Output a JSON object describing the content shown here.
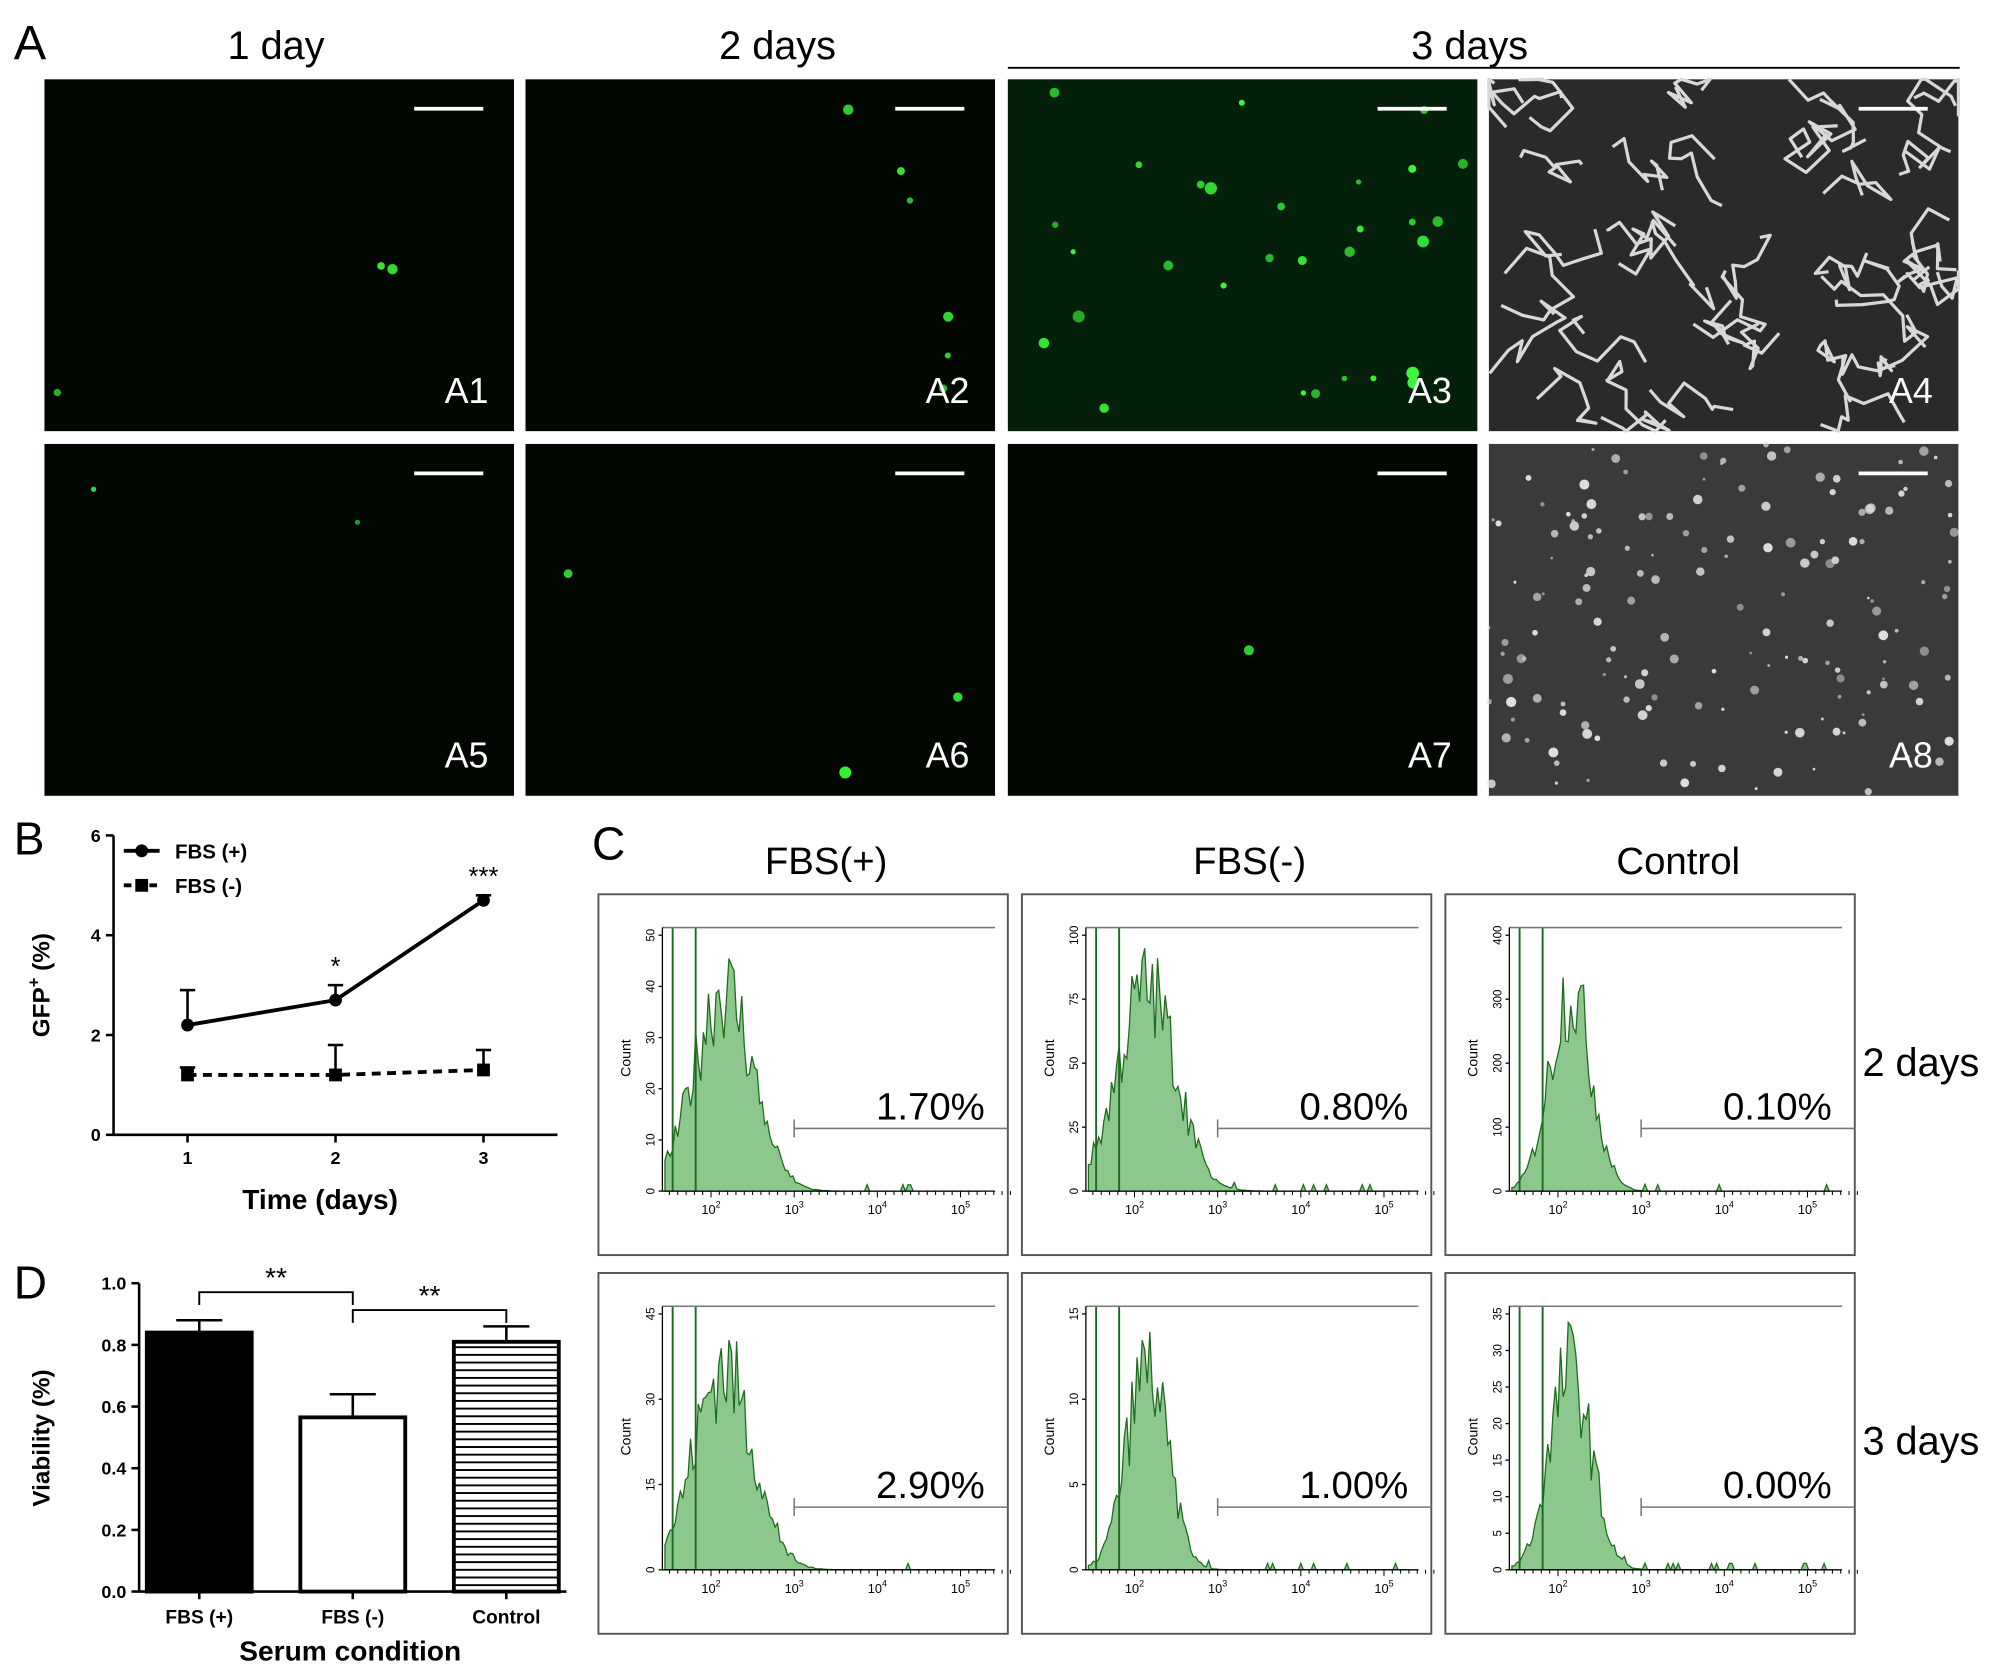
{
  "panel_labels": [
    "A",
    "B",
    "C",
    "D"
  ],
  "panel_a": {
    "columns": [
      "1 day",
      "2 days",
      "3 days"
    ],
    "images": [
      "A1",
      "A2",
      "A3",
      "A4",
      "A5",
      "A6",
      "A7",
      "A8"
    ]
  },
  "chart_data": [
    {
      "type": "line",
      "y_label": "GFP",
      "y_label_sup": "+",
      "y_label_unit": " (%)",
      "x_label": "Time (days)",
      "x": [
        1,
        2,
        3
      ],
      "xlim": [
        0.5,
        3.5
      ],
      "xticks": [
        1,
        2,
        3
      ],
      "ylim": [
        0,
        6
      ],
      "yticks": [
        0,
        2,
        4,
        6
      ],
      "series": [
        {
          "name": "FBS (+)",
          "color": "#000000",
          "marker": "circle",
          "dash": "solid",
          "values": [
            2.2,
            2.7,
            4.7
          ],
          "errors": [
            0.7,
            0.3,
            0.1
          ]
        },
        {
          "name": "FBS (-)",
          "color": "#000000",
          "marker": "square",
          "dash": "dashed",
          "values": [
            1.2,
            1.2,
            1.3
          ],
          "errors": [
            0.15,
            0.6,
            0.4
          ]
        }
      ],
      "annotations": [
        {
          "text": "*",
          "x": 2
        },
        {
          "text": "***",
          "x": 3
        }
      ],
      "legend": "top-left"
    },
    {
      "type": "bar",
      "y_label": "Viability (%)",
      "x_label": "Serum condition",
      "categories": [
        "FBS (+)",
        "FBS (-)",
        "Control"
      ],
      "values": [
        0.84,
        0.565,
        0.81
      ],
      "errors": [
        0.04,
        0.075,
        0.05
      ],
      "colors": [
        "#000000",
        "#ffffff",
        "#ffffff"
      ],
      "hatches": [
        "none",
        "none",
        "horizontal"
      ],
      "ylim": [
        0,
        1
      ],
      "yticks": [
        {
          "value": 0,
          "label": "0.0"
        },
        0.2,
        0.4,
        0.6,
        0.8,
        {
          "value": 1,
          "label": "1.0"
        }
      ],
      "comparisons": [
        {
          "text": "**",
          "from": "FBS (+)",
          "to": "FBS (-)"
        },
        {
          "text": "**",
          "from": "FBS (-)",
          "to": "Control"
        }
      ]
    }
  ],
  "panel_c": {
    "columns": [
      "FBS(+)",
      "FBS(-)",
      "Control"
    ],
    "rows": [
      "2 days",
      "3 days"
    ],
    "y_label": "Count",
    "xticks": [
      {
        "base": "10",
        "exp": "2"
      },
      {
        "base": "10",
        "exp": "3"
      },
      {
        "base": "10",
        "exp": "4"
      },
      {
        "base": "10",
        "exp": "5"
      }
    ],
    "plots": [
      [
        {
          "percent": "1.70%",
          "yticks": [
            0,
            10,
            20,
            30,
            40,
            50
          ]
        },
        {
          "percent": "0.80%",
          "yticks": [
            0,
            25,
            50,
            75,
            100
          ]
        },
        {
          "percent": "0.10%",
          "yticks": [
            0,
            100,
            200,
            300,
            400
          ]
        }
      ],
      [
        {
          "percent": "2.90%",
          "yticks": [
            0,
            15,
            30,
            45
          ]
        },
        {
          "percent": "1.00%",
          "yticks": [
            0,
            5,
            10,
            15
          ]
        },
        {
          "percent": "0.00%",
          "yticks": [
            0,
            5,
            10,
            15,
            20,
            25,
            30,
            35
          ]
        }
      ]
    ]
  }
}
